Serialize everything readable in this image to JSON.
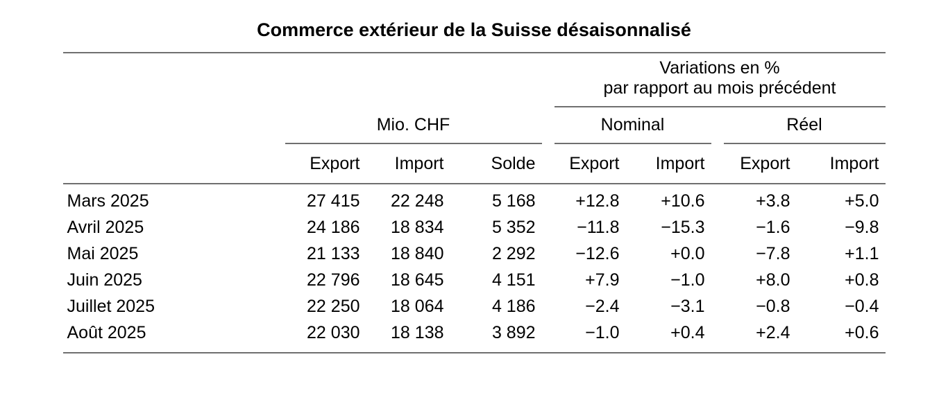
{
  "title": "Commerce extérieur de la Suisse désaisonnalisé",
  "table": {
    "variations_header": {
      "line1": "Variations en %",
      "line2": "par rapport au mois précédent"
    },
    "unit_label": "Mio. CHF",
    "nominal_label": "Nominal",
    "reel_label": "Réel",
    "columns": [
      "Export",
      "Import",
      "Solde",
      "Export",
      "Import",
      "Export",
      "Import"
    ],
    "rows": [
      {
        "month": "Mars 2025",
        "chf_export": "27 415",
        "chf_import": "22 248",
        "solde": "5 168",
        "nom_export": "+12.8",
        "nom_import": "+10.6",
        "reel_export": "+3.8",
        "reel_import": "+5.0"
      },
      {
        "month": "Avril 2025",
        "chf_export": "24 186",
        "chf_import": "18 834",
        "solde": "5 352",
        "nom_export": "−11.8",
        "nom_import": "−15.3",
        "reel_export": "−1.6",
        "reel_import": "−9.8"
      },
      {
        "month": "Mai 2025",
        "chf_export": "21 133",
        "chf_import": "18 840",
        "solde": "2 292",
        "nom_export": "−12.6",
        "nom_import": "+0.0",
        "reel_export": "−7.8",
        "reel_import": "+1.1"
      },
      {
        "month": "Juin 2025",
        "chf_export": "22 796",
        "chf_import": "18 645",
        "solde": "4 151",
        "nom_export": "+7.9",
        "nom_import": "−1.0",
        "reel_export": "+8.0",
        "reel_import": "+0.8"
      },
      {
        "month": "Juillet 2025",
        "chf_export": "22 250",
        "chf_import": "18 064",
        "solde": "4 186",
        "nom_export": "−2.4",
        "nom_import": "−3.1",
        "reel_export": "−0.8",
        "reel_import": "−0.4"
      },
      {
        "month": "Août 2025",
        "chf_export": "22 030",
        "chf_import": "18 138",
        "solde": "3 892",
        "nom_export": "−1.0",
        "nom_import": "+0.4",
        "reel_export": "+2.4",
        "reel_import": "+0.6"
      }
    ]
  }
}
